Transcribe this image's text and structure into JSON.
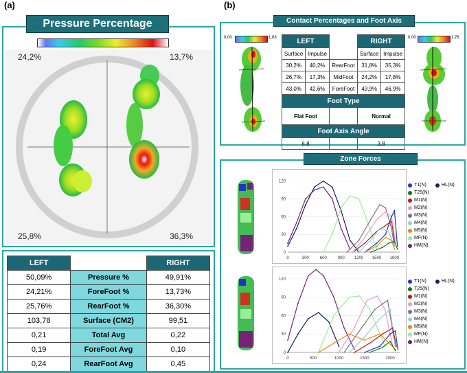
{
  "panels": {
    "a": "(a)",
    "b": "(b)"
  },
  "pressure": {
    "title": "Pressure Percentage",
    "q_tl": "24,2%",
    "q_tr": "13,7%",
    "q_bl": "25,8%",
    "q_br": "36,3%"
  },
  "pressure_table": {
    "left_header": "LEFT",
    "right_header": "RIGHT",
    "rows": [
      {
        "left": "50,09%",
        "label": "Pressure %",
        "right": "49,91%"
      },
      {
        "left": "24,21%",
        "label": "ForeFoot %",
        "right": "13,73%"
      },
      {
        "left": "25,76%",
        "label": "RearFoot %",
        "right": "36,30%"
      },
      {
        "left": "103,78",
        "label": "Surface (CM2)",
        "right": "99,51"
      },
      {
        "left": "0,21",
        "label": "Total Avg",
        "right": "0,22"
      },
      {
        "left": "0,19",
        "label": "ForeFoot Avg",
        "right": "0,10"
      },
      {
        "left": "0,24",
        "label": "RearFoot Avg",
        "right": "0,45"
      }
    ]
  },
  "contact": {
    "title": "Contact Percentages and Foot Axis",
    "scale_left_min": "0,00",
    "scale_left_max": "1,63",
    "scale_right_min": "0,00",
    "scale_right_max": "1,78",
    "left_header": "LEFT",
    "right_header": "RIGHT",
    "surface": "Surface",
    "impulse": "Impulse",
    "rows": [
      {
        "ls": "30,2%",
        "li": "40,2%",
        "label": "RearFoot",
        "rs": "31,8%",
        "ri": "35,3%"
      },
      {
        "ls": "26,7%",
        "li": "17,3%",
        "label": "MidFoot",
        "rs": "24,2%",
        "ri": "17,8%"
      },
      {
        "ls": "43,0%",
        "li": "42,6%",
        "label": "ForeFoot",
        "rs": "43,9%",
        "ri": "46,9%"
      }
    ],
    "foot_type_label": "Foot Type",
    "foot_type_left": "Flat Foot",
    "foot_type_right": "Normal",
    "axis_angle_label": "Foot Axis Angle",
    "axis_angle_left": "6,8",
    "axis_angle_right": "3,8"
  },
  "zone": {
    "title": "Zone Forces",
    "legend": [
      "T1(N)",
      "HL(N)",
      "T25(N)",
      "M1(N)",
      "M2(N)",
      "M3(N)",
      "M4(N)",
      "M5(N)",
      "MF(N)",
      "HM(N)"
    ],
    "legend_colors": [
      "#2233cc",
      "#1a1a66",
      "#117722",
      "#cc1111",
      "#ee99cc",
      "#777777",
      "#99ccdd",
      "#ee8811",
      "#99ee99",
      "#772277"
    ]
  },
  "chart_data": [
    {
      "type": "line",
      "xlim": [
        0,
        1900
      ],
      "ylim": [
        0,
        130
      ],
      "x_ticks": [
        "0",
        "300",
        "600",
        "900",
        "1200",
        "1500",
        "1800"
      ],
      "y_ticks": [
        "0",
        "30",
        "60",
        "90",
        "120"
      ],
      "series": [
        {
          "name": "HL(N)",
          "color": "#1a1a66",
          "x": [
            0,
            150,
            300,
            450,
            600,
            750,
            900,
            1050,
            1200
          ],
          "y": [
            10,
            40,
            80,
            110,
            120,
            110,
            70,
            20,
            0
          ]
        },
        {
          "name": "HM(N)",
          "color": "#772277",
          "x": [
            0,
            150,
            300,
            450,
            600,
            750,
            900,
            1050
          ],
          "y": [
            15,
            50,
            90,
            105,
            110,
            90,
            40,
            5
          ]
        },
        {
          "name": "MF(N)",
          "color": "#99ee99",
          "x": [
            600,
            750,
            900,
            1050,
            1200,
            1350,
            1500
          ],
          "y": [
            0,
            30,
            75,
            95,
            90,
            50,
            5
          ]
        },
        {
          "name": "M3(N)",
          "color": "#777777",
          "x": [
            1000,
            1200,
            1400,
            1550,
            1650,
            1750,
            1800
          ],
          "y": [
            0,
            20,
            55,
            80,
            75,
            40,
            10
          ]
        },
        {
          "name": "M1(N)",
          "color": "#cc1111",
          "x": [
            1100,
            1300,
            1500,
            1650,
            1750,
            1800
          ],
          "y": [
            0,
            15,
            35,
            45,
            52,
            20
          ]
        },
        {
          "name": "M2(N)",
          "color": "#ee99cc",
          "x": [
            1100,
            1300,
            1500,
            1650,
            1750,
            1820
          ],
          "y": [
            0,
            25,
            55,
            68,
            60,
            15
          ]
        },
        {
          "name": "T1(N)",
          "color": "#2233cc",
          "x": [
            1300,
            1500,
            1650,
            1750,
            1800,
            1850
          ],
          "y": [
            0,
            15,
            30,
            60,
            70,
            10
          ]
        },
        {
          "name": "M4(N)",
          "color": "#99ccdd",
          "x": [
            1200,
            1400,
            1550,
            1700,
            1800
          ],
          "y": [
            0,
            20,
            40,
            35,
            10
          ]
        },
        {
          "name": "M5(N)",
          "color": "#ee8811",
          "x": [
            1300,
            1500,
            1650,
            1750,
            1800
          ],
          "y": [
            0,
            10,
            25,
            20,
            5
          ]
        },
        {
          "name": "T25(N)",
          "color": "#117722",
          "x": [
            1400,
            1600,
            1700,
            1800,
            1850
          ],
          "y": [
            0,
            8,
            15,
            18,
            5
          ]
        }
      ]
    },
    {
      "type": "line",
      "xlim": [
        0,
        2200
      ],
      "ylim": [
        0,
        130
      ],
      "x_ticks": [
        "0",
        "500",
        "1000",
        "1500",
        "2000"
      ],
      "y_ticks": [
        "0",
        "30",
        "60",
        "90",
        "120"
      ],
      "series": [
        {
          "name": "HM(N)",
          "color": "#772277",
          "x": [
            0,
            200,
            400,
            550,
            700,
            900,
            1100,
            1300
          ],
          "y": [
            20,
            80,
            125,
            135,
            125,
            90,
            40,
            5
          ]
        },
        {
          "name": "HL(N)",
          "color": "#1a1a66",
          "x": [
            0,
            200,
            400,
            600,
            800,
            1000
          ],
          "y": [
            0,
            30,
            55,
            65,
            50,
            10
          ]
        },
        {
          "name": "MF(N)",
          "color": "#99ee99",
          "x": [
            600,
            900,
            1200,
            1400,
            1600,
            1900
          ],
          "y": [
            0,
            60,
            90,
            92,
            70,
            10
          ]
        },
        {
          "name": "M2(N)",
          "color": "#ee99cc",
          "x": [
            1000,
            1300,
            1550,
            1750,
            1900,
            2050
          ],
          "y": [
            0,
            40,
            85,
            92,
            70,
            10
          ]
        },
        {
          "name": "M3(N)",
          "color": "#777777",
          "x": [
            1100,
            1400,
            1700,
            1950,
            2100
          ],
          "y": [
            0,
            35,
            70,
            85,
            10
          ]
        },
        {
          "name": "M4(N)",
          "color": "#99ccdd",
          "x": [
            1200,
            1500,
            1800,
            2000,
            2100
          ],
          "y": [
            0,
            25,
            55,
            70,
            10
          ]
        },
        {
          "name": "M1(N)",
          "color": "#cc1111",
          "x": [
            1300,
            1600,
            1850,
            2050,
            2120
          ],
          "y": [
            0,
            15,
            30,
            40,
            10
          ]
        },
        {
          "name": "T1(N)",
          "color": "#2233cc",
          "x": [
            1500,
            1800,
            2000,
            2100,
            2150
          ],
          "y": [
            0,
            10,
            30,
            35,
            5
          ]
        },
        {
          "name": "M5(N)",
          "color": "#ee8811",
          "x": [
            600,
            900,
            1200,
            1500,
            1800,
            2100
          ],
          "y": [
            0,
            15,
            30,
            20,
            30,
            5
          ]
        },
        {
          "name": "T25(N)",
          "color": "#117722",
          "x": [
            1600,
            1850,
            2000,
            2100
          ],
          "y": [
            0,
            8,
            18,
            3
          ]
        }
      ]
    }
  ]
}
